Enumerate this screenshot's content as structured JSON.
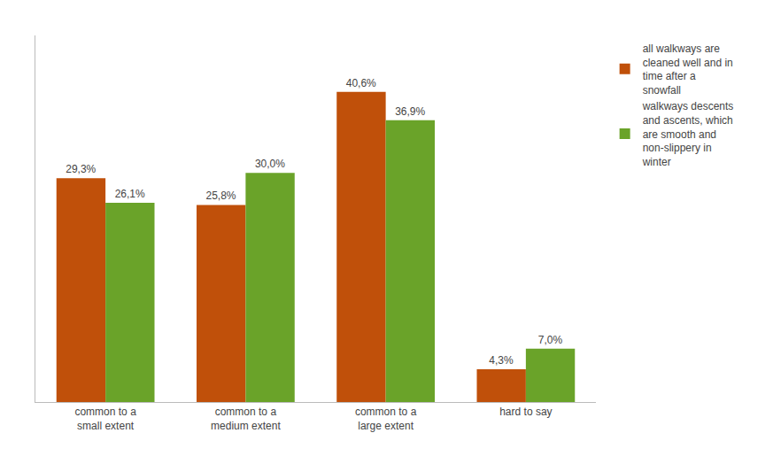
{
  "chart_data": {
    "type": "bar",
    "categories": [
      "common to a\nsmall extent",
      "common to a\nmedium extent",
      "common to a\nlarge extent",
      "hard to say"
    ],
    "series": [
      {
        "name": "all walkways are\ncleaned well and in\ntime after a\nsnowfall",
        "color": "#C0500A",
        "values": [
          29.3,
          25.8,
          40.6,
          4.3
        ],
        "value_labels": [
          "29,3%",
          "25,8%",
          "40,6%",
          "4,3%"
        ]
      },
      {
        "name": "walkways descents\nand ascents, which\nare smooth and\nnon-slippery in\nwinter",
        "color": "#6AA329",
        "values": [
          26.1,
          30.0,
          36.9,
          7.0
        ],
        "value_labels": [
          "26,1%",
          "30,0%",
          "36,9%",
          "7,0%"
        ]
      }
    ],
    "ylim": [
      0,
      48
    ],
    "grid": false,
    "legend": "upper right",
    "data_labels": true,
    "tick_labels": "x"
  }
}
